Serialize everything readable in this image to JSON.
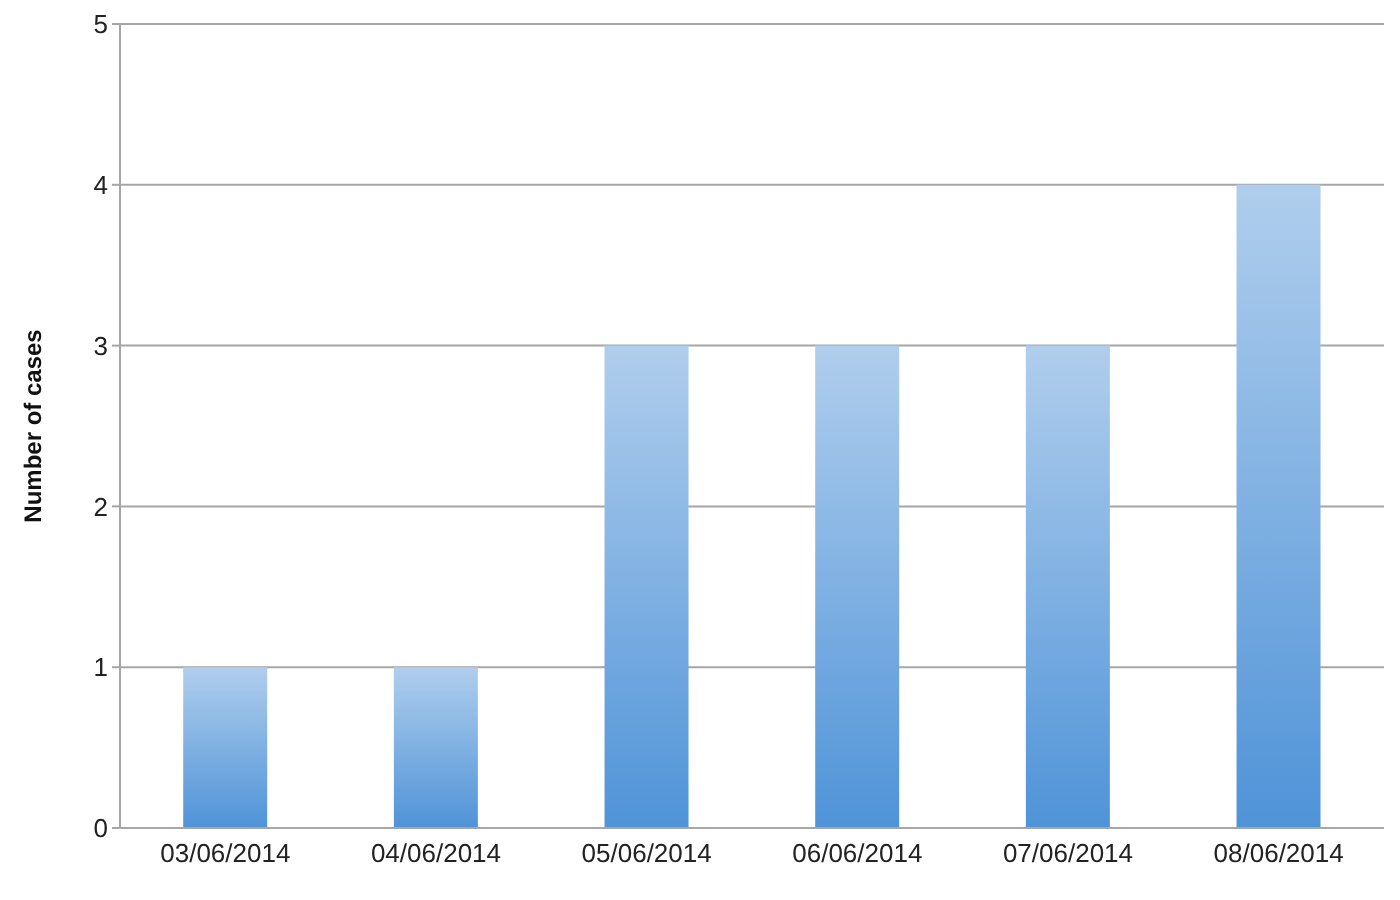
{
  "chart_data": {
    "type": "bar",
    "ylabel": "Number of cases",
    "categories": [
      "03/06/2014",
      "04/06/2014",
      "05/06/2014",
      "06/06/2014",
      "07/06/2014",
      "08/06/2014"
    ],
    "values": [
      1,
      1,
      3,
      3,
      3,
      4
    ],
    "color": "#4f93d8",
    "ylim": [
      0,
      5
    ],
    "yticks": [
      0,
      1,
      2,
      3,
      4,
      5
    ],
    "grid": "y"
  }
}
